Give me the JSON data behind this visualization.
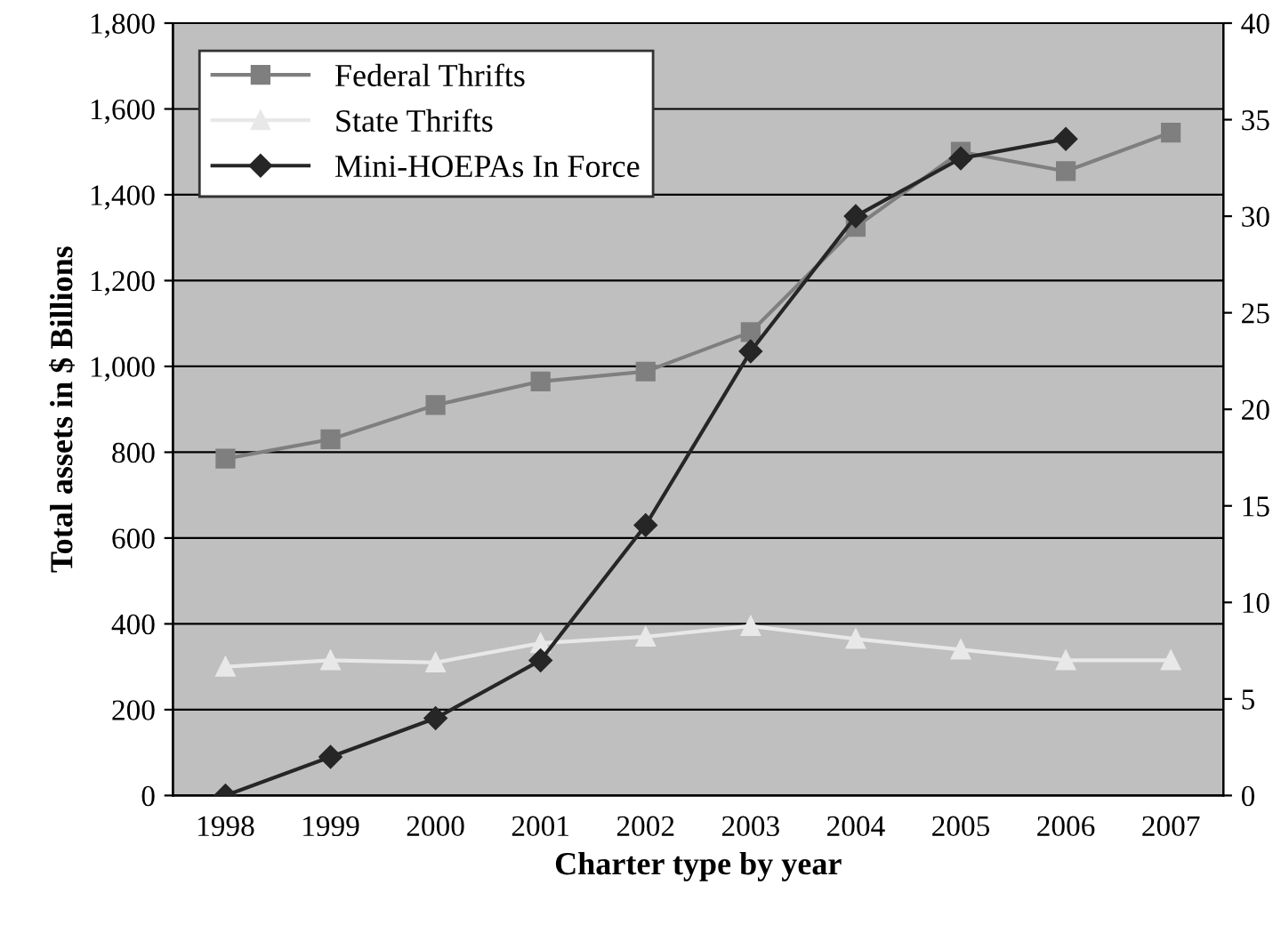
{
  "chart_data": {
    "type": "line",
    "xlabel": "Charter type by year",
    "ylabel": "Total assets in $ Billions",
    "categories": [
      "1998",
      "1999",
      "2000",
      "2001",
      "2002",
      "2003",
      "2004",
      "2005",
      "2006",
      "2007"
    ],
    "series": [
      {
        "name": "Federal Thrifts",
        "color": "#7f7f7f",
        "marker": "square",
        "values": [
          785,
          830,
          910,
          965,
          988,
          1080,
          1325,
          1500,
          1455,
          1545
        ]
      },
      {
        "name": "State Thrifts",
        "color": "#e8e8e8",
        "marker": "triangle",
        "values": [
          300,
          315,
          310,
          355,
          370,
          395,
          365,
          340,
          315,
          315
        ]
      },
      {
        "name": "Mini-HOEPAs In Force",
        "color": "#262626",
        "marker": "diamond",
        "axis": "y2",
        "values": [
          0,
          2,
          4,
          7,
          14,
          23,
          30,
          33,
          34,
          null
        ]
      }
    ],
    "ylim": [
      0,
      1800
    ],
    "yticks": [
      0,
      200,
      400,
      600,
      800,
      {
        "value": 1000,
        "label": "1,000"
      },
      {
        "value": 1200,
        "label": "1,200"
      },
      {
        "value": 1400,
        "label": "1,400"
      },
      {
        "value": 1600,
        "label": "1,600"
      },
      {
        "value": 1800,
        "label": "1,800"
      }
    ],
    "y2lim": [
      0,
      40
    ],
    "y2ticks": [
      0,
      5,
      10,
      15,
      20,
      25,
      30,
      35,
      40
    ],
    "grid": "y",
    "legend": "top left",
    "line_style": "solid"
  }
}
